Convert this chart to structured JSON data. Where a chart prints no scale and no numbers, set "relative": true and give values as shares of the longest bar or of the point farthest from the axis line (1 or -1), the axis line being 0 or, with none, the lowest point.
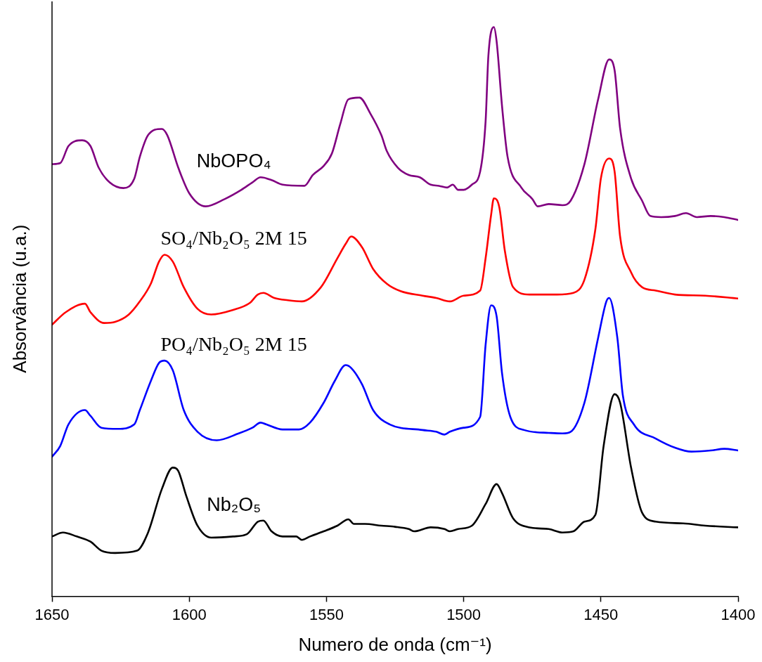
{
  "chart_data": {
    "type": "line",
    "relative": true,
    "xlabel": "Numero de onda (cm⁻¹)",
    "ylabel": "Absorvância (u.a.)",
    "xlim": [
      1650,
      1400
    ],
    "xticks": [
      1650,
      1600,
      1550,
      1500,
      1450,
      1400
    ],
    "grid": false,
    "legend": false,
    "series": [
      {
        "name": "NbOPO₄",
        "color": "#800080",
        "x": [
          1650,
          1647,
          1644,
          1639,
          1636,
          1633,
          1629,
          1624,
          1620,
          1618,
          1615,
          1610,
          1608,
          1604,
          1600,
          1594,
          1587,
          1581,
          1577,
          1574,
          1570,
          1566,
          1558,
          1555,
          1551,
          1548,
          1545,
          1542,
          1538,
          1534,
          1530,
          1528,
          1524,
          1520,
          1516,
          1512,
          1509,
          1506,
          1504,
          1502,
          1500,
          1497,
          1494,
          1492,
          1491,
          1489,
          1488,
          1486,
          1484,
          1479,
          1475,
          1473,
          1469,
          1464,
          1461,
          1456,
          1451,
          1447,
          1445,
          1443,
          1439,
          1435,
          1432,
          1428,
          1423,
          1419,
          1415,
          1410,
          1405,
          1400
        ],
        "values": [
          0.759,
          0.761,
          0.791,
          0.801,
          0.791,
          0.753,
          0.727,
          0.717,
          0.734,
          0.772,
          0.81,
          0.821,
          0.81,
          0.753,
          0.708,
          0.685,
          0.698,
          0.714,
          0.727,
          0.736,
          0.731,
          0.723,
          0.721,
          0.74,
          0.756,
          0.778,
          0.829,
          0.873,
          0.876,
          0.848,
          0.81,
          0.782,
          0.753,
          0.74,
          0.736,
          0.723,
          0.721,
          0.718,
          0.723,
          0.714,
          0.714,
          0.723,
          0.746,
          0.835,
          0.949,
          1,
          0.975,
          0.86,
          0.772,
          0.718,
          0.698,
          0.685,
          0.689,
          0.687,
          0.695,
          0.759,
          0.873,
          0.943,
          0.924,
          0.822,
          0.734,
          0.695,
          0.668,
          0.666,
          0.668,
          0.673,
          0.666,
          0.668,
          0.666,
          0.661
        ]
      },
      {
        "name": "SO₄/Nb₂O₅ 2M 15",
        "color": "#ff0000",
        "x": [
          1650,
          1645,
          1638,
          1636,
          1631,
          1627,
          1622,
          1618,
          1614,
          1611,
          1609,
          1606,
          1602,
          1597,
          1592,
          1584,
          1578,
          1575,
          1573,
          1569,
          1564,
          1559,
          1552,
          1546,
          1543,
          1541,
          1537,
          1533,
          1528,
          1523,
          1515,
          1510,
          1505,
          1500,
          1494,
          1492,
          1490,
          1489,
          1487,
          1485,
          1482,
          1476,
          1466,
          1460,
          1456,
          1452,
          1450,
          1447,
          1445,
          1443,
          1439,
          1435,
          1430,
          1423,
          1412,
          1400
        ],
        "values": [
          0.477,
          0.499,
          0.514,
          0.499,
          0.48,
          0.482,
          0.495,
          0.518,
          0.549,
          0.588,
          0.6,
          0.588,
          0.543,
          0.505,
          0.495,
          0.503,
          0.515,
          0.53,
          0.533,
          0.524,
          0.52,
          0.518,
          0.543,
          0.594,
          0.619,
          0.632,
          0.613,
          0.575,
          0.549,
          0.536,
          0.528,
          0.524,
          0.518,
          0.528,
          0.537,
          0.594,
          0.67,
          0.699,
          0.683,
          0.607,
          0.543,
          0.53,
          0.53,
          0.533,
          0.556,
          0.645,
          0.734,
          0.769,
          0.746,
          0.632,
          0.569,
          0.543,
          0.537,
          0.53,
          0.528,
          0.523
        ]
      },
      {
        "name": "PO₄/Nb₂O₅ 2M 15",
        "color": "#0000ff",
        "x": [
          1650,
          1647,
          1644,
          1638,
          1636,
          1632,
          1626,
          1620,
          1618,
          1614,
          1611,
          1609,
          1606,
          1602,
          1597,
          1590,
          1582,
          1577,
          1574,
          1572,
          1566,
          1560,
          1556,
          1551,
          1547,
          1543,
          1541,
          1537,
          1533,
          1527,
          1515,
          1510,
          1507,
          1505,
          1500,
          1494,
          1492,
          1490,
          1488,
          1486,
          1483,
          1478,
          1469,
          1464,
          1461,
          1456,
          1451,
          1448,
          1447,
          1444,
          1442,
          1438,
          1430,
          1423,
          1417,
          1410,
          1405,
          1400
        ],
        "values": [
          0.245,
          0.264,
          0.302,
          0.327,
          0.317,
          0.296,
          0.294,
          0.302,
          0.327,
          0.378,
          0.41,
          0.414,
          0.397,
          0.327,
          0.289,
          0.274,
          0.286,
          0.296,
          0.305,
          0.302,
          0.293,
          0.293,
          0.305,
          0.34,
          0.378,
          0.406,
          0.401,
          0.372,
          0.327,
          0.302,
          0.292,
          0.289,
          0.284,
          0.289,
          0.296,
          0.315,
          0.442,
          0.511,
          0.492,
          0.391,
          0.315,
          0.292,
          0.287,
          0.286,
          0.289,
          0.34,
          0.454,
          0.518,
          0.524,
          0.454,
          0.353,
          0.302,
          0.277,
          0.261,
          0.254,
          0.256,
          0.259,
          0.256
        ]
      },
      {
        "name": "Nb₂O₅",
        "color": "#000000",
        "x": [
          1650,
          1646,
          1641,
          1636,
          1632,
          1627,
          1619,
          1615,
          1610,
          1606,
          1604,
          1601,
          1597,
          1592,
          1584,
          1579,
          1575,
          1573,
          1570,
          1566,
          1561,
          1559,
          1556,
          1551,
          1546,
          1542,
          1540,
          1536,
          1530,
          1525,
          1520,
          1518,
          1512,
          1507,
          1505,
          1502,
          1497,
          1492,
          1488,
          1486,
          1482,
          1476,
          1469,
          1464,
          1460,
          1456,
          1452,
          1449,
          1445,
          1443,
          1439,
          1435,
          1430,
          1420,
          1412,
          1400
        ],
        "values": [
          0.105,
          0.112,
          0.105,
          0.096,
          0.08,
          0.076,
          0.08,
          0.112,
          0.188,
          0.226,
          0.22,
          0.175,
          0.124,
          0.103,
          0.105,
          0.109,
          0.131,
          0.133,
          0.114,
          0.105,
          0.105,
          0.099,
          0.105,
          0.114,
          0.124,
          0.135,
          0.127,
          0.127,
          0.124,
          0.122,
          0.118,
          0.114,
          0.121,
          0.118,
          0.114,
          0.118,
          0.124,
          0.162,
          0.197,
          0.181,
          0.137,
          0.121,
          0.118,
          0.112,
          0.114,
          0.131,
          0.143,
          0.264,
          0.355,
          0.34,
          0.226,
          0.147,
          0.131,
          0.128,
          0.124,
          0.121
        ]
      }
    ]
  }
}
